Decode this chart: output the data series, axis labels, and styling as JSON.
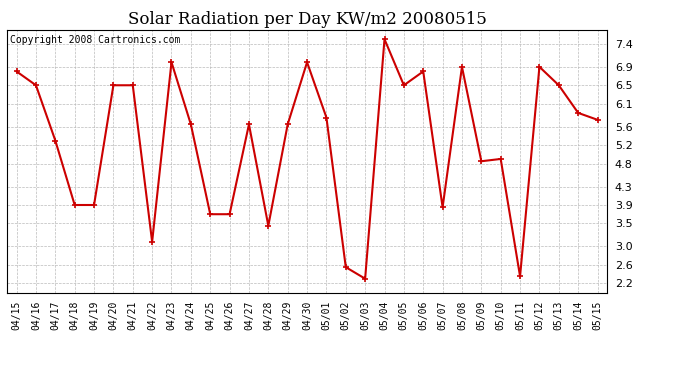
{
  "title": "Solar Radiation per Day KW/m2 20080515",
  "copyright": "Copyright 2008 Cartronics.com",
  "dates": [
    "04/15",
    "04/16",
    "04/17",
    "04/18",
    "04/19",
    "04/20",
    "04/21",
    "04/22",
    "04/23",
    "04/24",
    "04/25",
    "04/26",
    "04/27",
    "04/28",
    "04/29",
    "04/30",
    "05/01",
    "05/02",
    "05/03",
    "05/04",
    "05/05",
    "05/06",
    "05/07",
    "05/08",
    "05/09",
    "05/10",
    "05/11",
    "05/12",
    "05/13",
    "05/14",
    "05/15"
  ],
  "values": [
    6.8,
    6.5,
    5.3,
    3.9,
    3.9,
    6.5,
    6.5,
    3.1,
    7.0,
    5.65,
    3.7,
    3.7,
    5.65,
    3.45,
    5.65,
    7.0,
    5.8,
    2.55,
    2.3,
    7.5,
    6.5,
    6.8,
    3.85,
    6.9,
    4.85,
    4.9,
    2.35,
    6.9,
    6.5,
    5.9,
    5.75
  ],
  "line_color": "#cc0000",
  "marker": "+",
  "marker_size": 5,
  "marker_edge_width": 1.2,
  "line_width": 1.5,
  "bg_color": "#ffffff",
  "grid_color": "#bbbbbb",
  "ylim": [
    2.0,
    7.7
  ],
  "yticks": [
    2.2,
    2.6,
    3.0,
    3.5,
    3.9,
    4.3,
    4.8,
    5.2,
    5.6,
    6.1,
    6.5,
    6.9,
    7.4
  ],
  "title_fontsize": 12,
  "tick_fontsize": 7,
  "copyright_fontsize": 7,
  "fig_width": 6.9,
  "fig_height": 3.75,
  "dpi": 100
}
